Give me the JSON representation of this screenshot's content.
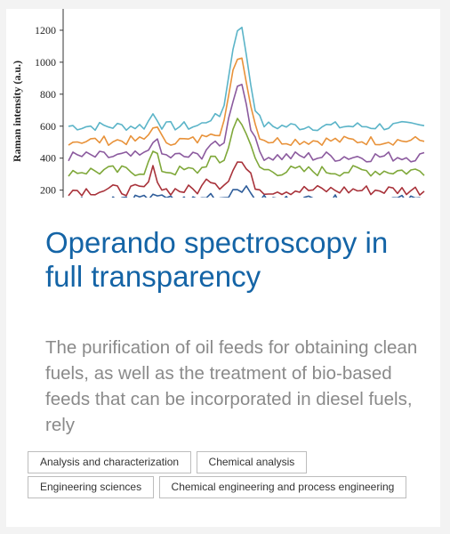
{
  "card": {
    "title": "Operando spectroscopy in full transparency",
    "description": "The purification of oil feeds for obtaining clean fuels, as well as the treatment of bio-based feeds that can be incorporated in diesel fuels, rely",
    "tags": [
      "Analysis and characterization",
      "Chemical analysis",
      "Engineering sciences",
      "Chemical engineering and process engineering"
    ]
  },
  "chart_data": {
    "type": "line",
    "ylabel": "Raman intensity (a.u.)",
    "xlabel": "",
    "ylim": [
      120,
      1300
    ],
    "yticks": [
      200,
      400,
      600,
      800,
      1000,
      1200
    ],
    "x_points": 80,
    "series": [
      {
        "color": "#5bb4c8",
        "baseline": 600,
        "peak": 1230,
        "noise": 30,
        "minor_peak": 700
      },
      {
        "color": "#e8923a",
        "baseline": 510,
        "peak": 1050,
        "noise": 30,
        "minor_peak": 640
      },
      {
        "color": "#8b5a9e",
        "baseline": 410,
        "peak": 880,
        "noise": 35,
        "minor_peak": 560
      },
      {
        "color": "#7fa83a",
        "baseline": 320,
        "peak": 650,
        "noise": 35,
        "minor_peak": 470
      },
      {
        "color": "#a8323a",
        "baseline": 200,
        "peak": 380,
        "noise": 35,
        "minor_peak": 360
      },
      {
        "color": "#2f5d9a",
        "baseline": 140,
        "peak": 220,
        "noise": 30,
        "minor_peak": 200
      }
    ]
  }
}
